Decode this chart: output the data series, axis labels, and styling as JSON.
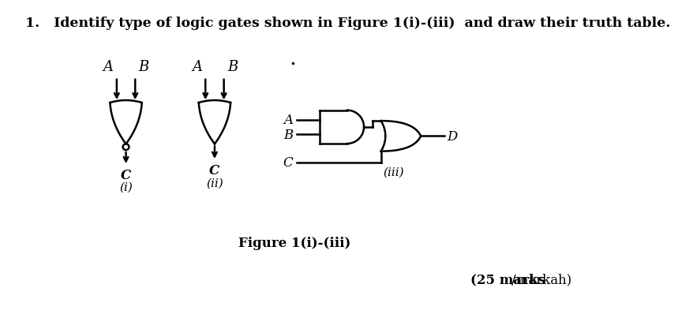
{
  "title_text": "1.   Identify type of logic gates shown in Figure 1(i)-(iii)  and draw their truth table.",
  "figure_caption": "Figure 1(i)-(iii)",
  "bg_color": "#ffffff",
  "line_color": "#000000",
  "lw": 1.8
}
